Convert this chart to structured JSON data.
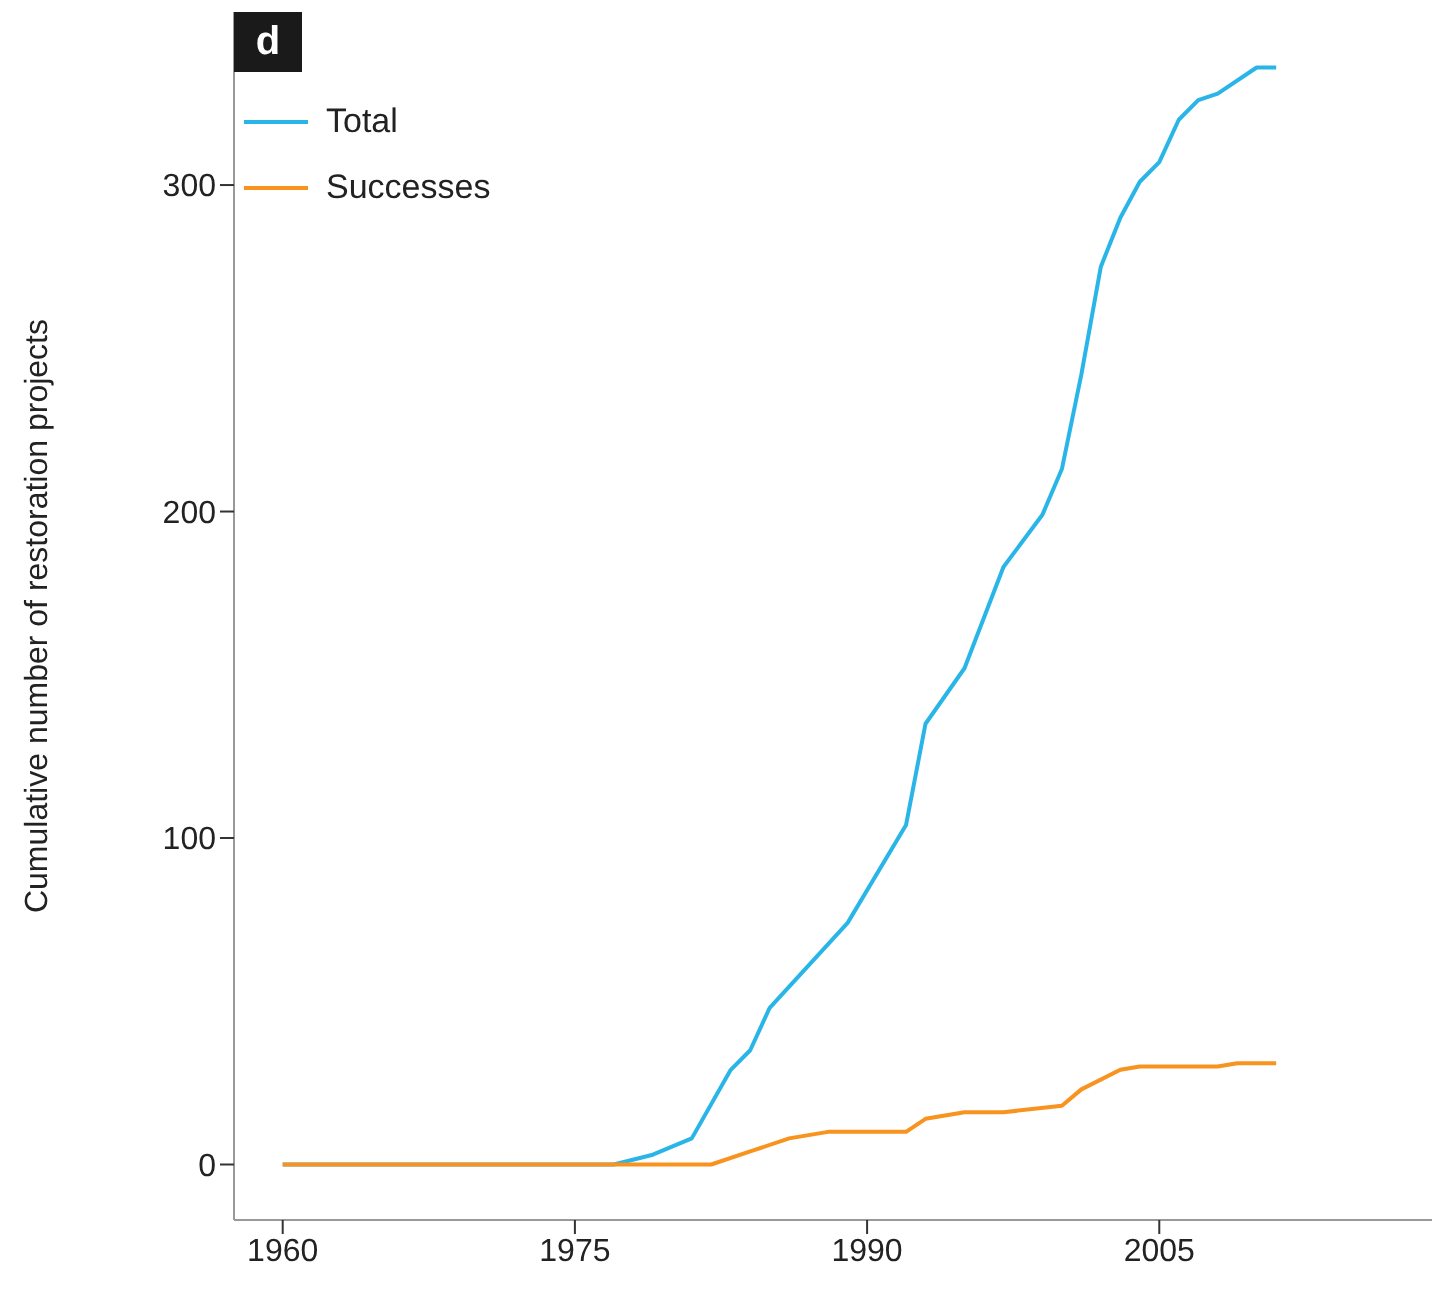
{
  "chart_data": {
    "type": "line",
    "ylabel": "Cumulative number of restoration projects",
    "annotations": [
      "d"
    ],
    "xlim": [
      1957.5,
      2019
    ],
    "xticks": [
      1960,
      1975,
      1990,
      2005
    ],
    "ylim": [
      -17,
      353
    ],
    "yticks": [
      0,
      100,
      200,
      300
    ],
    "legend": "top left",
    "line_style": "solid",
    "series": [
      {
        "name": "Total",
        "color": "#29b5e8",
        "x": [
          1960,
          1977,
          1979,
          1981,
          1983,
          1984,
          1985,
          1989,
          1992,
          1993,
          1995,
          1997,
          1999,
          2000,
          2001,
          2002,
          2003,
          2004,
          2005,
          2006,
          2007,
          2008,
          2010,
          2011
        ],
        "values": [
          0,
          0,
          3,
          8,
          29,
          35,
          48,
          74,
          104,
          135,
          152,
          183,
          199,
          213,
          242,
          275,
          290,
          301,
          307,
          320,
          326,
          328,
          336,
          336
        ]
      },
      {
        "name": "Successes",
        "color": "#f7931e",
        "x": [
          1960,
          1982,
          1984,
          1986,
          1988,
          1992,
          1993,
          1995,
          1997,
          2000,
          2001,
          2003,
          2004,
          2008,
          2009,
          2011
        ],
        "values": [
          0,
          0,
          4,
          8,
          10,
          10,
          14,
          16,
          16,
          18,
          23,
          29,
          30,
          30,
          31,
          31
        ]
      }
    ]
  }
}
